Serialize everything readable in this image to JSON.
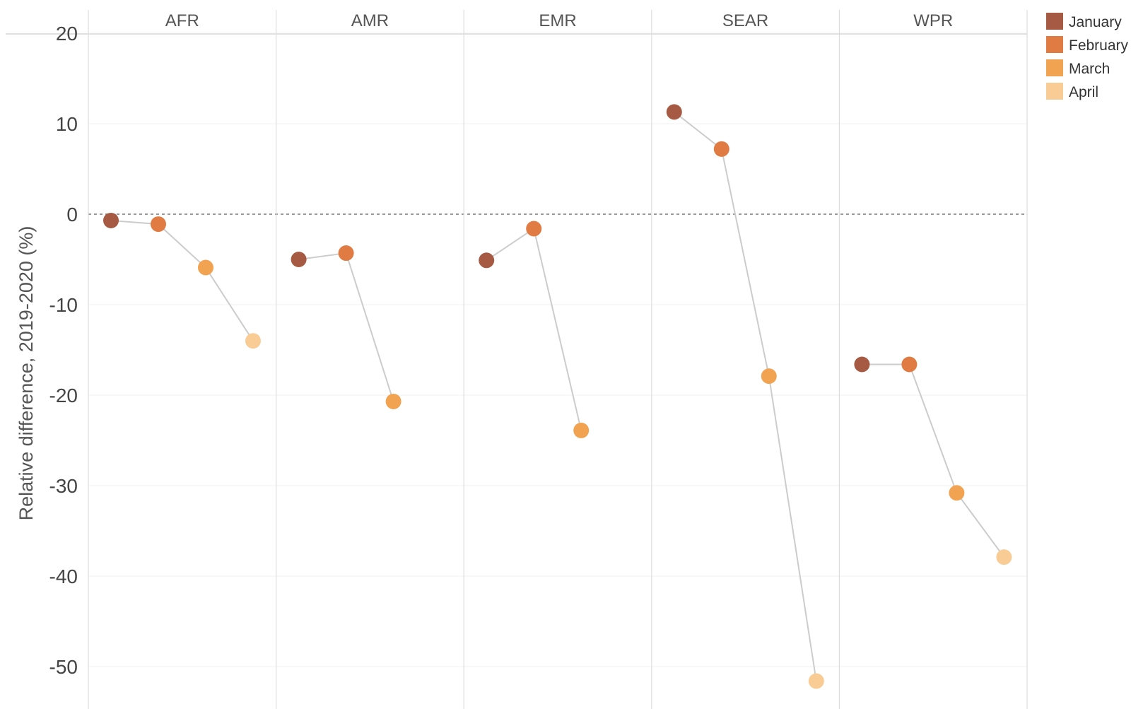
{
  "chart_data": {
    "type": "scatter",
    "title": "",
    "ylabel": "Relative difference, 2019-2020 (%)",
    "ylim": [
      -55,
      22
    ],
    "y_ticks": [
      20,
      10,
      0,
      -10,
      -20,
      -30,
      -40,
      -50
    ],
    "y_tick_labels": [
      "20",
      "10",
      "0",
      "-10",
      "-20",
      "-30",
      "-40",
      "-50"
    ],
    "reference_line": 0,
    "panels": [
      "AFR",
      "AMR",
      "EMR",
      "SEAR",
      "WPR"
    ],
    "months": [
      "January",
      "February",
      "March",
      "April"
    ],
    "colors": {
      "January": "#a65a43",
      "February": "#e07b43",
      "March": "#f1a352",
      "April": "#f9cc96",
      "connector": "#cccccc",
      "grid": "#dddddd",
      "zero_line": "#999999"
    },
    "legend_position": "top-right",
    "series": [
      {
        "panel": "AFR",
        "values": [
          -0.7,
          -1.1,
          -5.9,
          -14.0
        ]
      },
      {
        "panel": "AMR",
        "values": [
          -5.0,
          -4.3,
          -20.7
        ]
      },
      {
        "panel": "EMR",
        "values": [
          -5.1,
          -1.6,
          -23.9
        ]
      },
      {
        "panel": "SEAR",
        "values": [
          11.3,
          7.2,
          -17.9,
          -51.6
        ]
      },
      {
        "panel": "WPR",
        "values": [
          -16.6,
          -16.6,
          -30.8,
          -37.9
        ]
      }
    ]
  }
}
